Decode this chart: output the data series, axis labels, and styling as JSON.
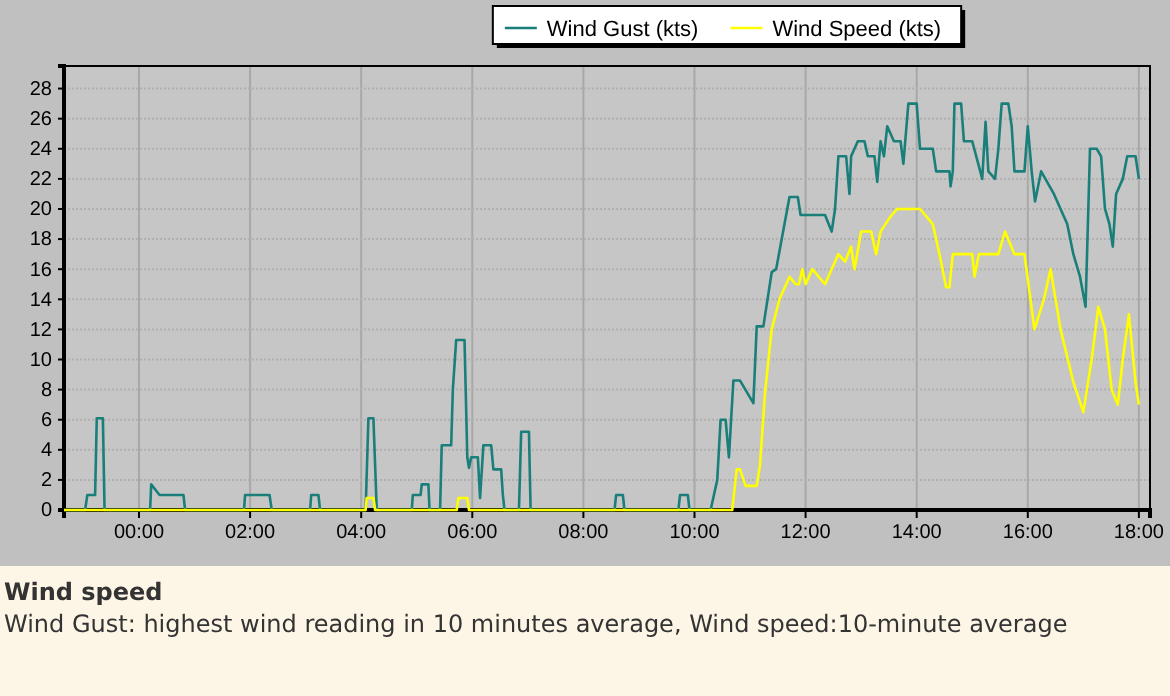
{
  "chart_data": {
    "type": "line",
    "title": "Wind speed",
    "subtitle": "Wind Gust: highest wind reading in 10 minutes average, Wind speed:10-minute average",
    "xlim": [
      -1.35,
      18.2
    ],
    "xticks": [
      {
        "value": 0,
        "label": "00:00"
      },
      {
        "value": 2,
        "label": "02:00"
      },
      {
        "value": 4,
        "label": "04:00"
      },
      {
        "value": 6,
        "label": "06:00"
      },
      {
        "value": 8,
        "label": "08:00"
      },
      {
        "value": 10,
        "label": "10:00"
      },
      {
        "value": 12,
        "label": "12:00"
      },
      {
        "value": 14,
        "label": "14:00"
      },
      {
        "value": 16,
        "label": "16:00"
      },
      {
        "value": 18,
        "label": "18:00"
      }
    ],
    "ylim": [
      0,
      29.5
    ],
    "yticks": [
      0,
      2,
      4,
      6,
      8,
      10,
      12,
      14,
      16,
      18,
      20,
      22,
      24,
      26,
      28
    ],
    "grid": true,
    "legend": "top",
    "line_style": "solid",
    "marker": "none",
    "series": [
      {
        "name": "Wind Gust (kts)",
        "color": "#1a7f7a",
        "x": [
          -1.35,
          -0.97,
          -0.93,
          -0.79,
          -0.76,
          -0.65,
          -0.62,
          0.2,
          0.22,
          0.37,
          0.8,
          0.83,
          1.89,
          1.91,
          2.35,
          2.39,
          3.08,
          3.1,
          3.23,
          3.26,
          4.08,
          4.13,
          4.22,
          4.28,
          4.91,
          4.93,
          5.07,
          5.09,
          5.21,
          5.23,
          5.42,
          5.45,
          5.62,
          5.65,
          5.71,
          5.86,
          5.91,
          5.94,
          5.98,
          6.1,
          6.14,
          6.2,
          6.34,
          6.38,
          6.52,
          6.55,
          6.58,
          6.84,
          6.88,
          7.02,
          7.05,
          8.56,
          8.59,
          8.71,
          8.74,
          9.71,
          9.74,
          9.88,
          9.91,
          10.29,
          10.41,
          10.47,
          10.56,
          10.62,
          10.7,
          10.82,
          11.06,
          11.12,
          11.24,
          11.39,
          11.47,
          11.71,
          11.86,
          11.91,
          12.35,
          12.47,
          12.53,
          12.59,
          12.73,
          12.79,
          12.82,
          12.94,
          13.06,
          13.12,
          13.24,
          13.29,
          13.35,
          13.41,
          13.47,
          13.59,
          13.71,
          13.76,
          13.85,
          14.0,
          14.06,
          14.29,
          14.35,
          14.59,
          14.61,
          14.65,
          14.68,
          14.8,
          14.85,
          15.0,
          15.18,
          15.24,
          15.29,
          15.41,
          15.47,
          15.53,
          15.65,
          15.71,
          15.76,
          15.94,
          16.0,
          16.07,
          16.13,
          16.24,
          16.47,
          16.71,
          16.82,
          16.94,
          17.04,
          17.12,
          17.24,
          17.32,
          17.39,
          17.47,
          17.53,
          17.59,
          17.71,
          17.79,
          17.94,
          18.0
        ],
        "values": [
          0,
          0,
          1,
          1,
          6.1,
          6.1,
          0,
          0,
          1.7,
          1,
          1,
          0,
          0,
          1,
          1,
          0,
          0,
          1,
          1,
          0,
          0,
          6.1,
          6.1,
          0,
          0,
          1,
          1,
          1.7,
          1.7,
          0,
          0,
          4.3,
          4.3,
          8,
          11.3,
          11.3,
          3.5,
          2.8,
          3.5,
          3.5,
          0.8,
          4.3,
          4.3,
          2.7,
          2.7,
          1,
          0,
          0,
          5.2,
          5.2,
          0,
          0,
          1,
          1,
          0,
          0,
          1,
          1,
          0,
          0,
          2,
          6,
          6,
          3.5,
          8.6,
          8.6,
          7.1,
          12.2,
          12.2,
          15.8,
          16,
          20.8,
          20.8,
          19.6,
          19.6,
          18.5,
          20,
          23.5,
          23.5,
          21,
          23.5,
          24.5,
          24.5,
          23.5,
          23.5,
          21.8,
          24.5,
          23.5,
          25.5,
          24.5,
          24.5,
          23,
          27,
          27,
          24,
          24,
          22.5,
          22.5,
          21.5,
          22.5,
          27,
          27,
          24.5,
          24.5,
          22,
          25.8,
          22.5,
          22,
          24,
          27,
          27,
          25.5,
          22.5,
          22.5,
          25.5,
          22.5,
          20.5,
          22.5,
          21,
          19,
          17,
          15.5,
          13.5,
          24,
          24,
          23.5,
          20,
          19,
          17.5,
          21,
          22,
          23.5,
          23.5,
          22
        ]
      },
      {
        "name": "Wind Speed (kts)",
        "color": "#ffff00",
        "x": [
          -1.35,
          4.08,
          4.1,
          4.22,
          4.25,
          5.72,
          5.75,
          5.91,
          5.94,
          10.68,
          10.76,
          10.82,
          10.92,
          11.06,
          11.12,
          11.18,
          11.27,
          11.39,
          11.53,
          11.71,
          11.82,
          11.88,
          11.94,
          12.0,
          12.12,
          12.35,
          12.59,
          12.71,
          12.82,
          12.88,
          13.0,
          13.18,
          13.27,
          13.35,
          13.53,
          13.65,
          14.06,
          14.29,
          14.41,
          14.53,
          14.59,
          14.65,
          15.0,
          15.04,
          15.12,
          15.47,
          15.59,
          15.76,
          15.94,
          16.12,
          16.29,
          16.41,
          16.59,
          16.82,
          17.0,
          17.15,
          17.27,
          17.39,
          17.51,
          17.62,
          17.71,
          17.82,
          17.94,
          18.0
        ],
        "values": [
          0,
          0,
          0.8,
          0.8,
          0,
          0,
          0.8,
          0.8,
          0,
          0,
          2.7,
          2.7,
          1.6,
          1.6,
          1.6,
          3,
          7.8,
          12,
          14,
          15.5,
          15,
          15,
          16,
          15,
          16,
          15,
          17,
          16.5,
          17.5,
          16,
          18.5,
          18.5,
          17,
          18.5,
          19.5,
          20,
          20,
          19,
          17,
          14.8,
          14.8,
          17,
          17,
          15.5,
          17,
          17,
          18.5,
          17,
          17,
          12,
          14,
          16,
          12,
          8.5,
          6.5,
          10,
          13.5,
          12,
          8,
          7,
          10,
          13,
          8.5,
          7
        ]
      }
    ]
  }
}
